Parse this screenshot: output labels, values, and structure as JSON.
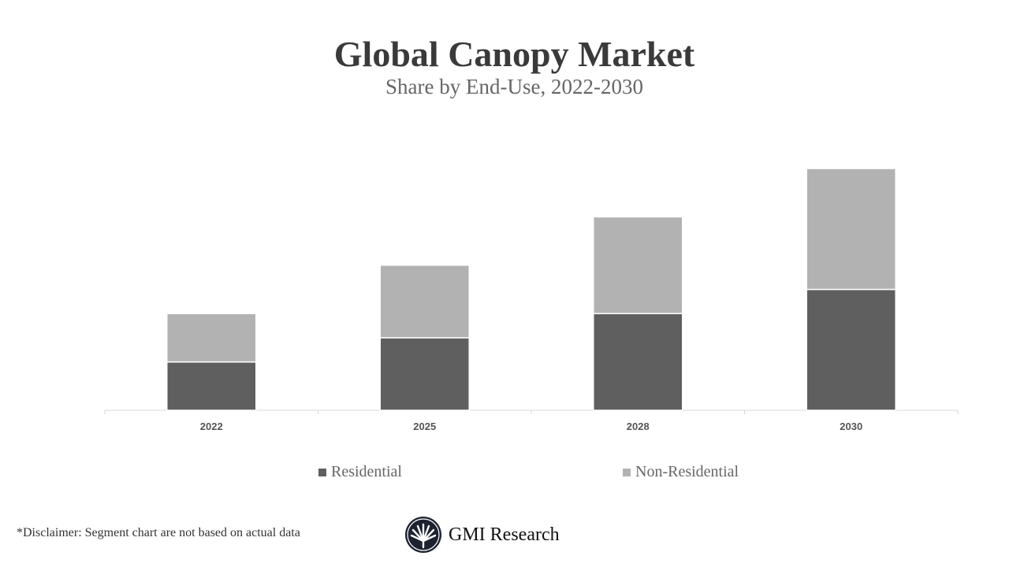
{
  "chart_data": {
    "type": "bar",
    "stacked": true,
    "title": "Global Canopy Market",
    "subtitle": "Share by End-Use, 2022-2030",
    "categories": [
      "2022",
      "2025",
      "2028",
      "2030"
    ],
    "series": [
      {
        "name": "Residential",
        "values": [
          2,
          3,
          4,
          5
        ],
        "color": "#5f5f5f"
      },
      {
        "name": "Non-Residential",
        "values": [
          2,
          3,
          4,
          5
        ],
        "color": "#b2b2b2"
      }
    ],
    "xlabel": "",
    "ylabel": "",
    "y_axis_shown": false,
    "grid": false,
    "legend_position": "bottom"
  },
  "footer": {
    "disclaimer": "*Disclaimer:   Segment chart are not based on actual data",
    "logo_text": "GMI Research"
  }
}
